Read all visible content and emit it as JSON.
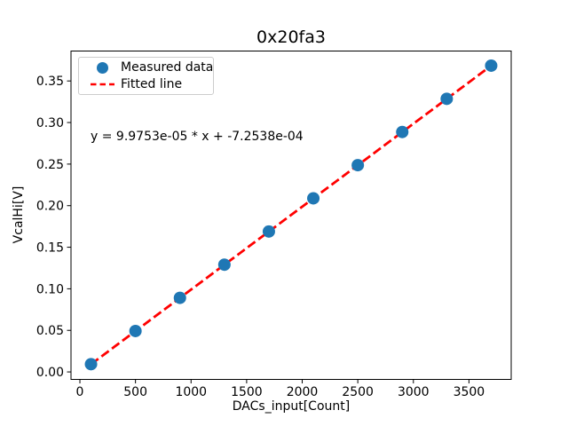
{
  "figure": {
    "title": "0x20fa3",
    "xlabel": "DACs_input[Count]",
    "ylabel": "VcalHi[V]",
    "annotation": "y = 9.9753e-05 * x + -7.2538e-04",
    "legend": [
      {
        "label": "Measured data",
        "marker": "circle-marker",
        "color": "#1f77b4"
      },
      {
        "label": "Fitted line",
        "marker": "dashed-line",
        "color": "#ff0000"
      }
    ],
    "colors": {
      "scatter": "#1f77b4",
      "fit_line": "#ff0000",
      "axes_text": "#000000",
      "spine": "#000000",
      "legend_border": "#cccccc",
      "background": "#ffffff"
    }
  },
  "chart_data": {
    "type": "scatter",
    "title": "0x20fa3",
    "xlabel": "DACs_input[Count]",
    "ylabel": "VcalHi[V]",
    "xlim": [
      -80,
      3880
    ],
    "ylim": [
      -0.009,
      0.386
    ],
    "x_ticks": [
      0,
      500,
      1000,
      1500,
      2000,
      2500,
      3000,
      3500
    ],
    "y_ticks": [
      0.0,
      0.05,
      0.1,
      0.15,
      0.2,
      0.25,
      0.3,
      0.35
    ],
    "grid": false,
    "legend_position": "upper left",
    "annotation": "y = 9.9753e-05 * x + -7.2538e-04",
    "series": [
      {
        "name": "Measured data",
        "type": "scatter",
        "color": "#1f77b4",
        "x": [
          100,
          500,
          900,
          1300,
          1700,
          2100,
          2500,
          2900,
          3300,
          3700
        ],
        "y": [
          0.0093,
          0.0492,
          0.0891,
          0.129,
          0.1689,
          0.2088,
          0.2487,
          0.2886,
          0.3285,
          0.3684
        ]
      },
      {
        "name": "Fitted line",
        "type": "line",
        "style": "dashed",
        "color": "#ff0000",
        "slope": 9.9753e-05,
        "intercept": -0.00072538,
        "x_range": [
          100,
          3700
        ]
      }
    ]
  }
}
